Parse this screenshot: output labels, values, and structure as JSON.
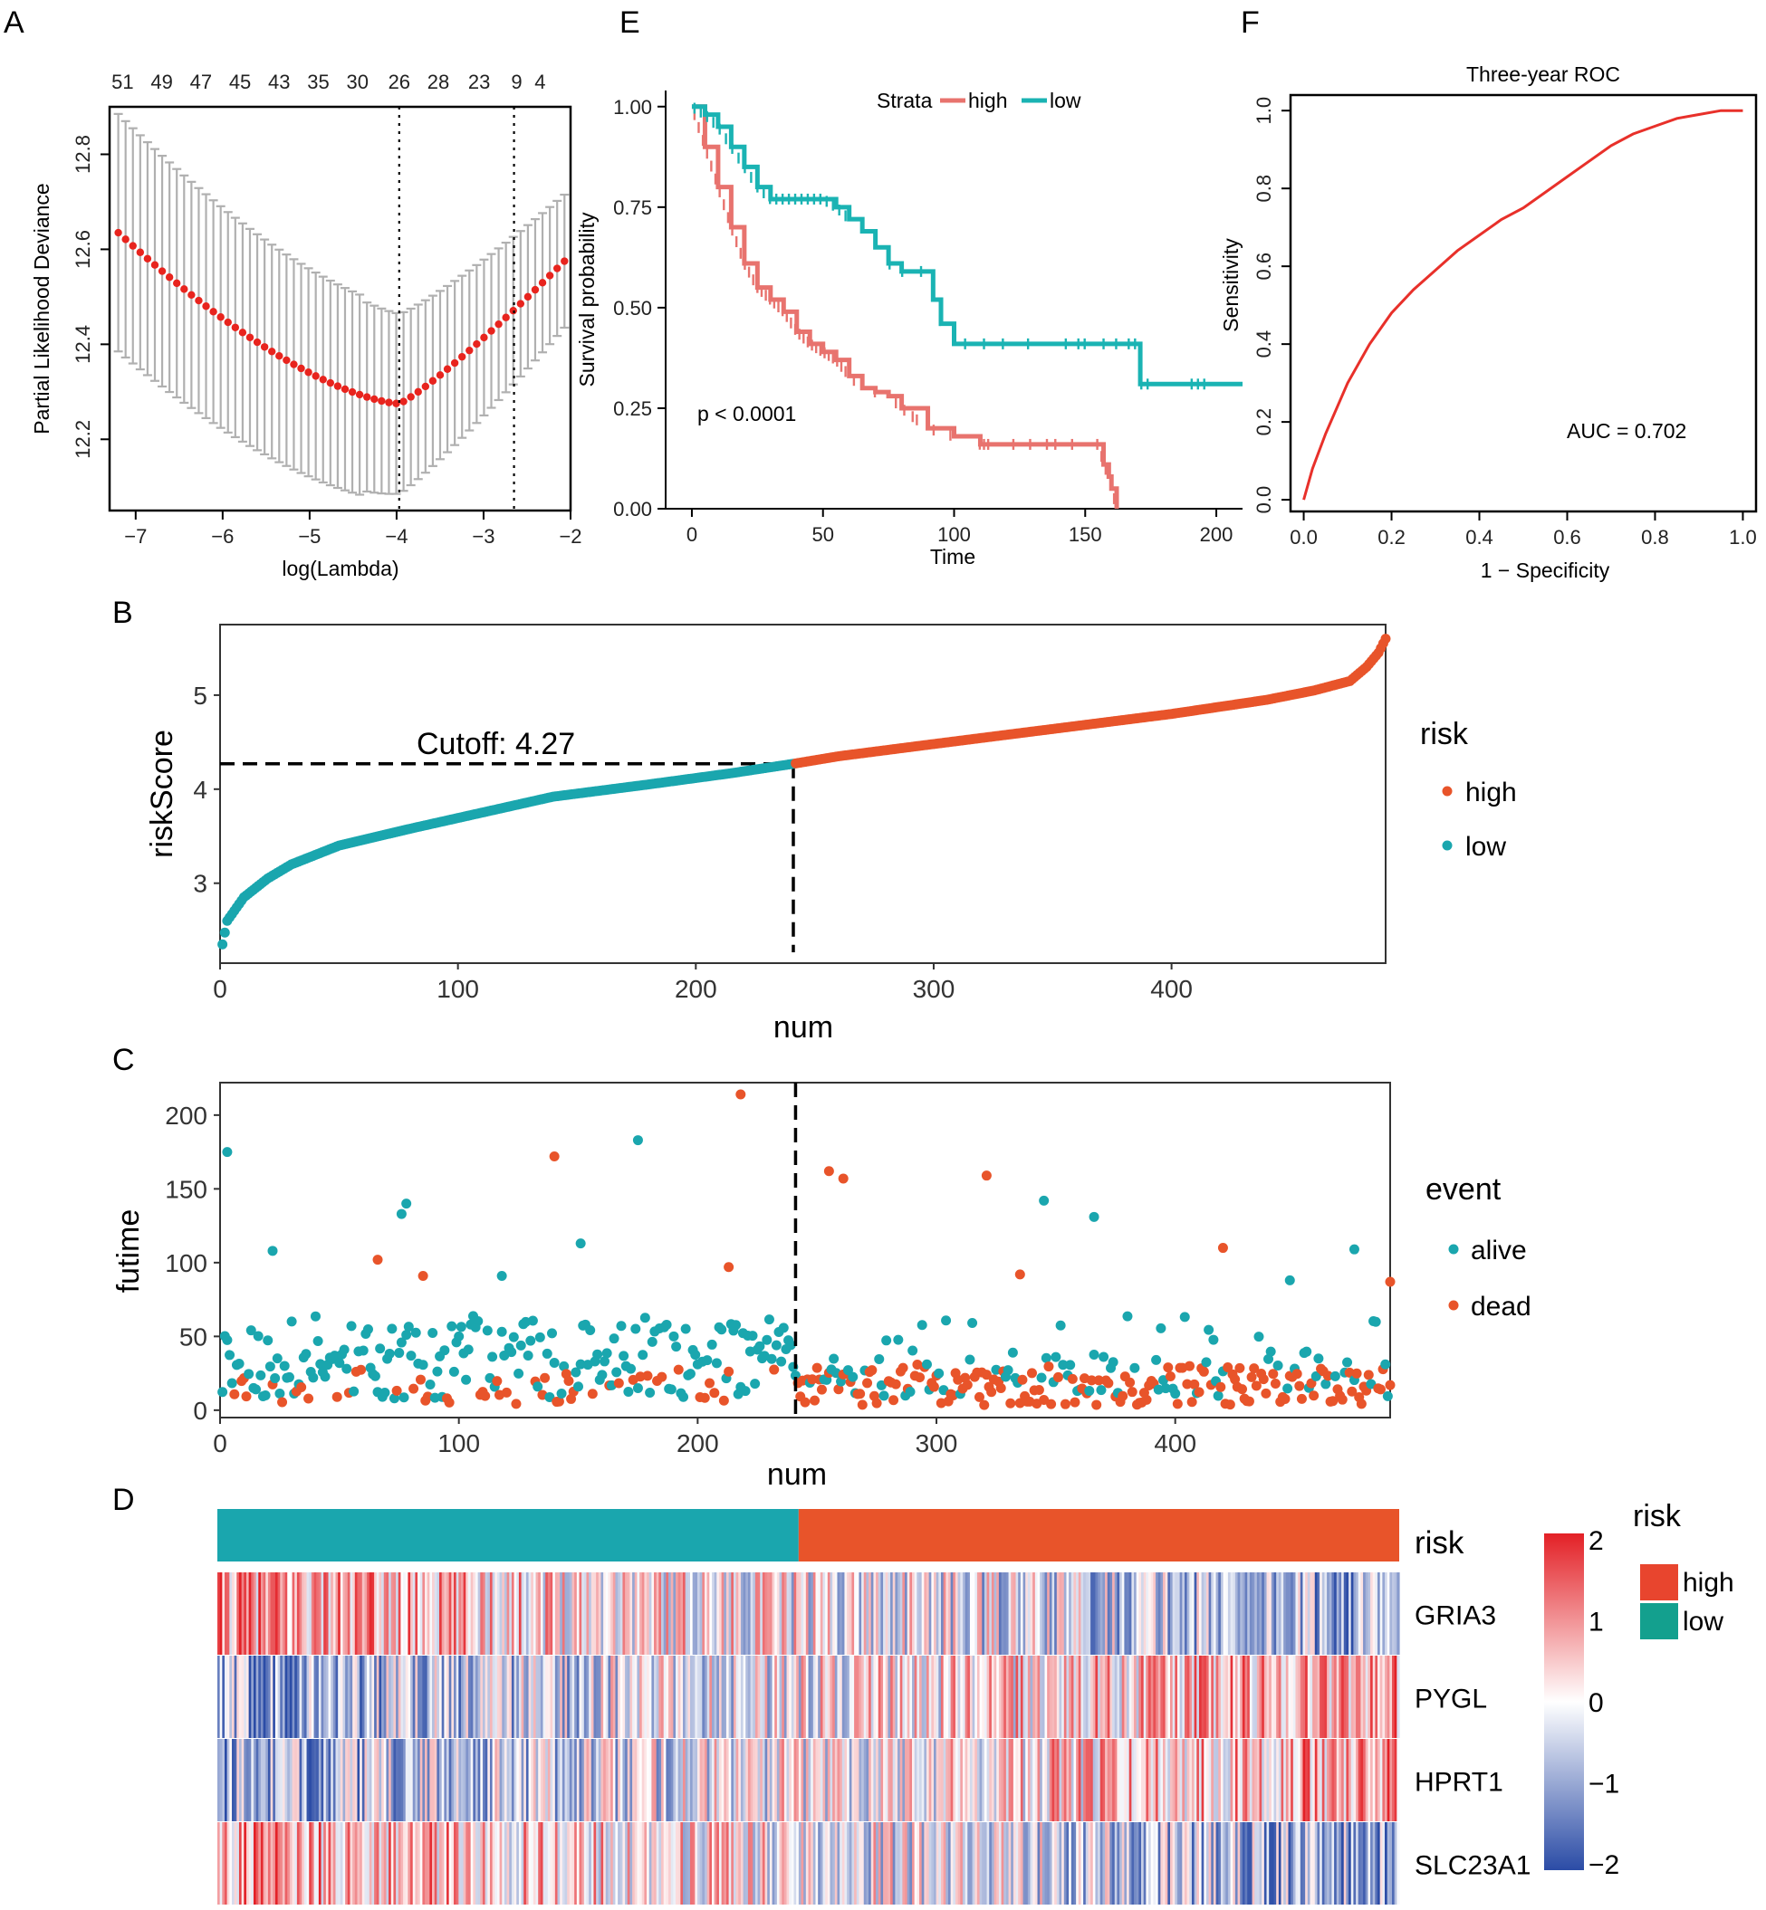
{
  "colors": {
    "high": "#E8542A",
    "low": "#1AA6AE",
    "km_high": "#E8736E",
    "km_low": "#1AB3B3",
    "lasso_point": "#E8241E",
    "lasso_err": "#B0B0B0",
    "roc": "#E8302A",
    "heat_low": "#2B4CA6",
    "heat_mid": "#FFFFFF",
    "heat_high": "#E32026"
  },
  "panels": {
    "A": {
      "letter": "A"
    },
    "B": {
      "letter": "B"
    },
    "C": {
      "letter": "C"
    },
    "D": {
      "letter": "D"
    },
    "E": {
      "letter": "E"
    },
    "F": {
      "letter": "F"
    }
  },
  "chart_data": [
    {
      "id": "A",
      "type": "scatter",
      "title": "",
      "xlabel": "log(Lambda)",
      "ylabel": "Partial Likelihood Deviance",
      "xlim": [
        -7.3,
        -2.0
      ],
      "ylim": [
        12.05,
        12.9
      ],
      "xticks": [
        "−7",
        "−6",
        "−5",
        "−4",
        "−3",
        "−2"
      ],
      "xtick_values": [
        -7,
        -6,
        -5,
        -4,
        -3,
        -2
      ],
      "yticks": [
        "12.2",
        "12.4",
        "12.6",
        "12.8"
      ],
      "ytick_values": [
        12.2,
        12.4,
        12.6,
        12.8
      ],
      "top_labels": [
        "51",
        "49",
        "47",
        "45",
        "43",
        "35",
        "30",
        "26",
        "28",
        "23",
        "9",
        "4"
      ],
      "top_label_positions": [
        -7.15,
        -6.7,
        -6.25,
        -5.8,
        -5.35,
        -4.9,
        -4.45,
        -3.97,
        -3.52,
        -3.05,
        -2.62,
        -2.35
      ],
      "lambda_min": -3.97,
      "lambda_1se": -2.65,
      "curve": {
        "x_start": -7.2,
        "x_end": -2.07,
        "n": 62,
        "min_x": -3.97,
        "min_y": 12.275,
        "start_y": 12.635,
        "end_y": 12.575
      },
      "error_halfwidth": [
        0.25,
        0.2,
        0.14
      ]
    },
    {
      "id": "E",
      "type": "line",
      "title": "",
      "xlabel": "Time",
      "ylabel": "Survival probability",
      "xlim": [
        -10,
        210
      ],
      "ylim": [
        0,
        1.04
      ],
      "xticks": [
        "0",
        "50",
        "100",
        "150",
        "200"
      ],
      "xtick_values": [
        0,
        50,
        100,
        150,
        200
      ],
      "yticks": [
        "0.00",
        "0.25",
        "0.50",
        "0.75",
        "1.00"
      ],
      "ytick_values": [
        0,
        0.25,
        0.5,
        0.75,
        1.0
      ],
      "legend_title": "Strata",
      "pvalue_text": "p < 0.0001",
      "series": [
        {
          "name": "high",
          "x": [
            0,
            5,
            10,
            15,
            20,
            25,
            30,
            35,
            40,
            45,
            50,
            55,
            60,
            65,
            70,
            75,
            80,
            90,
            100,
            110,
            120,
            130,
            140,
            150,
            155,
            157,
            159,
            160,
            162
          ],
          "y": [
            1.0,
            0.9,
            0.8,
            0.7,
            0.61,
            0.55,
            0.52,
            0.49,
            0.44,
            0.41,
            0.39,
            0.37,
            0.33,
            0.3,
            0.29,
            0.28,
            0.25,
            0.2,
            0.18,
            0.16,
            0.16,
            0.16,
            0.16,
            0.16,
            0.16,
            0.11,
            0.08,
            0.05,
            0.0
          ]
        },
        {
          "name": "low",
          "x": [
            0,
            5,
            10,
            15,
            20,
            25,
            30,
            40,
            50,
            55,
            60,
            65,
            70,
            75,
            80,
            85,
            90,
            92,
            95,
            100,
            102,
            120,
            140,
            160,
            170,
            171,
            210
          ],
          "y": [
            1.0,
            0.98,
            0.95,
            0.9,
            0.85,
            0.8,
            0.77,
            0.77,
            0.77,
            0.75,
            0.72,
            0.69,
            0.65,
            0.61,
            0.59,
            0.59,
            0.59,
            0.52,
            0.46,
            0.41,
            0.41,
            0.41,
            0.41,
            0.41,
            0.41,
            0.31,
            0.31
          ]
        }
      ]
    },
    {
      "id": "F",
      "type": "line",
      "title": "Three-year ROC",
      "xlabel": "1 − Specificity",
      "ylabel": "Sensitivity",
      "xlim": [
        -0.03,
        1.03
      ],
      "ylim": [
        -0.03,
        1.04
      ],
      "xticks": [
        "0.0",
        "0.2",
        "0.4",
        "0.6",
        "0.8",
        "1.0"
      ],
      "xtick_values": [
        0,
        0.2,
        0.4,
        0.6,
        0.8,
        1.0
      ],
      "yticks": [
        "0.0",
        "0.2",
        "0.4",
        "0.6",
        "0.8",
        "1.0"
      ],
      "ytick_values": [
        0,
        0.2,
        0.4,
        0.6,
        0.8,
        1.0
      ],
      "auc_text": "AUC = 0.702",
      "x": [
        0,
        0.02,
        0.05,
        0.1,
        0.15,
        0.2,
        0.25,
        0.3,
        0.35,
        0.4,
        0.45,
        0.5,
        0.55,
        0.6,
        0.65,
        0.7,
        0.75,
        0.8,
        0.85,
        0.9,
        0.95,
        1.0
      ],
      "y": [
        0,
        0.08,
        0.17,
        0.3,
        0.4,
        0.48,
        0.54,
        0.59,
        0.64,
        0.68,
        0.72,
        0.75,
        0.79,
        0.83,
        0.87,
        0.91,
        0.94,
        0.96,
        0.98,
        0.99,
        1.0,
        1.0
      ]
    },
    {
      "id": "B",
      "type": "scatter",
      "title": "",
      "xlabel": "num",
      "ylabel": "riskScore",
      "xlim": [
        0,
        490
      ],
      "ylim": [
        2.15,
        5.75
      ],
      "xticks": [
        "0",
        "100",
        "200",
        "300",
        "400"
      ],
      "xtick_values": [
        0,
        100,
        200,
        300,
        400
      ],
      "yticks": [
        "3",
        "4",
        "5"
      ],
      "ytick_values": [
        3,
        4,
        5
      ],
      "cutoff_text": "Cutoff: 4.27",
      "cutoff_value": 4.27,
      "cutoff_index": 241,
      "n": 490,
      "legend_title": "risk",
      "legend": [
        "high",
        "low"
      ],
      "curve_knots_x": [
        1,
        3,
        10,
        20,
        30,
        50,
        80,
        110,
        140,
        180,
        215,
        241,
        260,
        300,
        350,
        400,
        440,
        460,
        475,
        482,
        487,
        490
      ],
      "curve_knots_y": [
        2.35,
        2.6,
        2.85,
        3.05,
        3.2,
        3.4,
        3.58,
        3.75,
        3.92,
        4.05,
        4.17,
        4.27,
        4.35,
        4.48,
        4.64,
        4.8,
        4.95,
        5.05,
        5.15,
        5.3,
        5.45,
        5.6
      ]
    },
    {
      "id": "C",
      "type": "scatter",
      "title": "",
      "xlabel": "num",
      "ylabel": "futime",
      "xlim": [
        0,
        490
      ],
      "ylim": [
        -5,
        222
      ],
      "xticks": [
        "0",
        "100",
        "200",
        "300",
        "400"
      ],
      "xtick_values": [
        0,
        100,
        200,
        300,
        400
      ],
      "yticks": [
        "0",
        "50",
        "100",
        "150",
        "200"
      ],
      "ytick_values": [
        0,
        50,
        100,
        150,
        200
      ],
      "cutoff_index": 241,
      "legend_title": "event",
      "legend": [
        "alive",
        "dead"
      ],
      "highlights": [
        {
          "x": 3,
          "y": 175,
          "event": "alive"
        },
        {
          "x": 78,
          "y": 140,
          "event": "alive"
        },
        {
          "x": 76,
          "y": 133,
          "event": "alive"
        },
        {
          "x": 140,
          "y": 172,
          "event": "dead"
        },
        {
          "x": 175,
          "y": 183,
          "event": "alive"
        },
        {
          "x": 218,
          "y": 214,
          "event": "dead"
        },
        {
          "x": 255,
          "y": 162,
          "event": "dead"
        },
        {
          "x": 261,
          "y": 157,
          "event": "dead"
        },
        {
          "x": 321,
          "y": 159,
          "event": "dead"
        },
        {
          "x": 345,
          "y": 142,
          "event": "alive"
        },
        {
          "x": 366,
          "y": 131,
          "event": "alive"
        },
        {
          "x": 151,
          "y": 113,
          "event": "alive"
        },
        {
          "x": 66,
          "y": 102,
          "event": "dead"
        },
        {
          "x": 22,
          "y": 108,
          "event": "alive"
        },
        {
          "x": 420,
          "y": 110,
          "event": "dead"
        },
        {
          "x": 475,
          "y": 109,
          "event": "alive"
        },
        {
          "x": 213,
          "y": 97,
          "event": "dead"
        },
        {
          "x": 490,
          "y": 87,
          "event": "dead"
        },
        {
          "x": 85,
          "y": 91,
          "event": "dead"
        },
        {
          "x": 118,
          "y": 91,
          "event": "alive"
        },
        {
          "x": 335,
          "y": 92,
          "event": "dead"
        },
        {
          "x": 448,
          "y": 88,
          "event": "alive"
        }
      ]
    },
    {
      "id": "D",
      "type": "heatmap",
      "title": "",
      "rows": [
        "GRIA3",
        "PYGL",
        "HPRT1",
        "SLC23A1"
      ],
      "annotation_label": "risk",
      "n_columns": 490,
      "cutoff_index": 241,
      "row_trend": [
        -1,
        1,
        1,
        -1
      ],
      "scale_ticks": [
        "2",
        "1",
        "0",
        "−1",
        "−2"
      ],
      "scale_values": [
        2,
        1,
        0,
        -1,
        -2
      ],
      "legend_title": "risk",
      "legend": [
        "high",
        "low"
      ]
    }
  ]
}
